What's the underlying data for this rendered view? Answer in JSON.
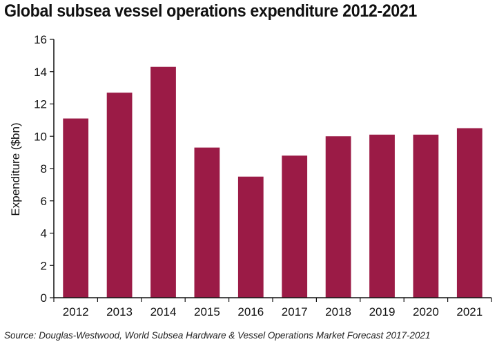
{
  "title": "Global subsea vessel operations expenditure 2012-2021",
  "source": "Source: Douglas-Westwood, World Subsea Hardware & Vessel Operations Market Forecast 2017-2021",
  "colors": {
    "bar": "#9b1b46",
    "axis": "#111111"
  },
  "chart_data": {
    "type": "bar",
    "title": "Global subsea vessel operations expenditure 2012-2021",
    "xlabel": "",
    "ylabel": "Expenditure  ($bn)",
    "categories": [
      "2012",
      "2013",
      "2014",
      "2015",
      "2016",
      "2017",
      "2018",
      "2019",
      "2020",
      "2021"
    ],
    "values": [
      11.1,
      12.7,
      14.3,
      9.3,
      7.5,
      8.8,
      10.0,
      10.1,
      10.1,
      10.5
    ],
    "ylim": [
      0,
      16
    ],
    "yticks": [
      0,
      2,
      4,
      6,
      8,
      10,
      12,
      14,
      16
    ],
    "grid": false,
    "legend": "none"
  }
}
